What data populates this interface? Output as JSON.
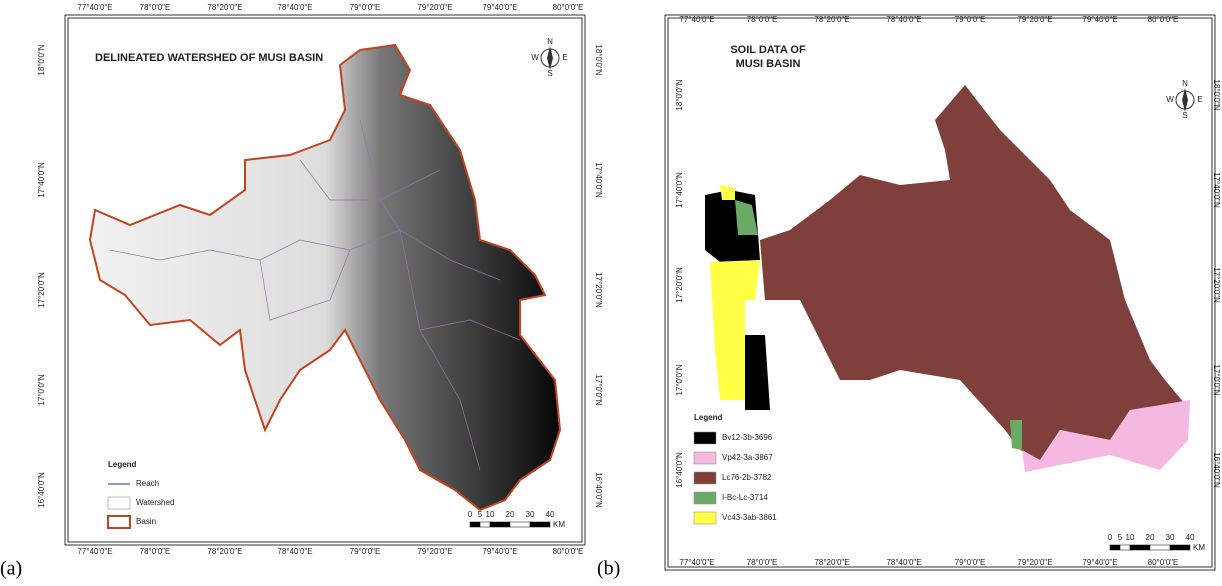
{
  "panels": [
    {
      "label": "(a)",
      "title": "DELINEATED WATERSHED OF MUSI BASIN",
      "lon_labels": [
        "77°40'0\"E",
        "78°0'0\"E",
        "78°20'0\"E",
        "78°40'0\"E",
        "79°0'0\"E",
        "79°20'0\"E",
        "79°40'0\"E",
        "80°0'0\"E"
      ],
      "lat_labels": [
        "18°0'0\"N",
        "17°40'0\"N",
        "17°20'0\"N",
        "17°0'0\"N",
        "16°40'0\"N"
      ],
      "compass": [
        "N",
        "E",
        "S",
        "W"
      ],
      "legend": {
        "title": "Legend",
        "items": [
          {
            "label": "Reach",
            "color": "#5a7fb5"
          },
          {
            "label": "Watershed",
            "color": "#bbbbbb"
          },
          {
            "label": "Basin",
            "color": "#c0451f"
          }
        ]
      },
      "scale": [
        0,
        5,
        10,
        20,
        30,
        40
      ],
      "scale_unit": "KM"
    },
    {
      "label": "(b)",
      "title": [
        "SOIL DATA OF",
        "MUSI BASIN"
      ],
      "lon_labels": [
        "77°40'0\"E",
        "78°0'0\"E",
        "78°20'0\"E",
        "78°40'0\"E",
        "79°0'0\"E",
        "79°20'0\"E",
        "79°40'0\"E",
        "80°0'0\"E"
      ],
      "lat_labels": [
        "18°0'0\"N",
        "17°40'0\"N",
        "17°20'0\"N",
        "17°0'0\"N",
        "16°40'0\"N"
      ],
      "compass": [
        "N",
        "E",
        "S",
        "W"
      ],
      "legend": {
        "title": "Legend",
        "items": [
          {
            "label": "Bv12-3b-3696",
            "color": "#000000"
          },
          {
            "label": "Vp42-3a-3867",
            "color": "#f5b8e0"
          },
          {
            "label": "Lc76-2b-3782",
            "color": "#7f3f3b"
          },
          {
            "label": "I-Bc-Lc-3714",
            "color": "#6aaa64"
          },
          {
            "label": "Vc43-3ab-3861",
            "color": "#ffff44"
          }
        ]
      },
      "scale": [
        0,
        5,
        10,
        20,
        30,
        40
      ],
      "scale_unit": "KM"
    }
  ]
}
